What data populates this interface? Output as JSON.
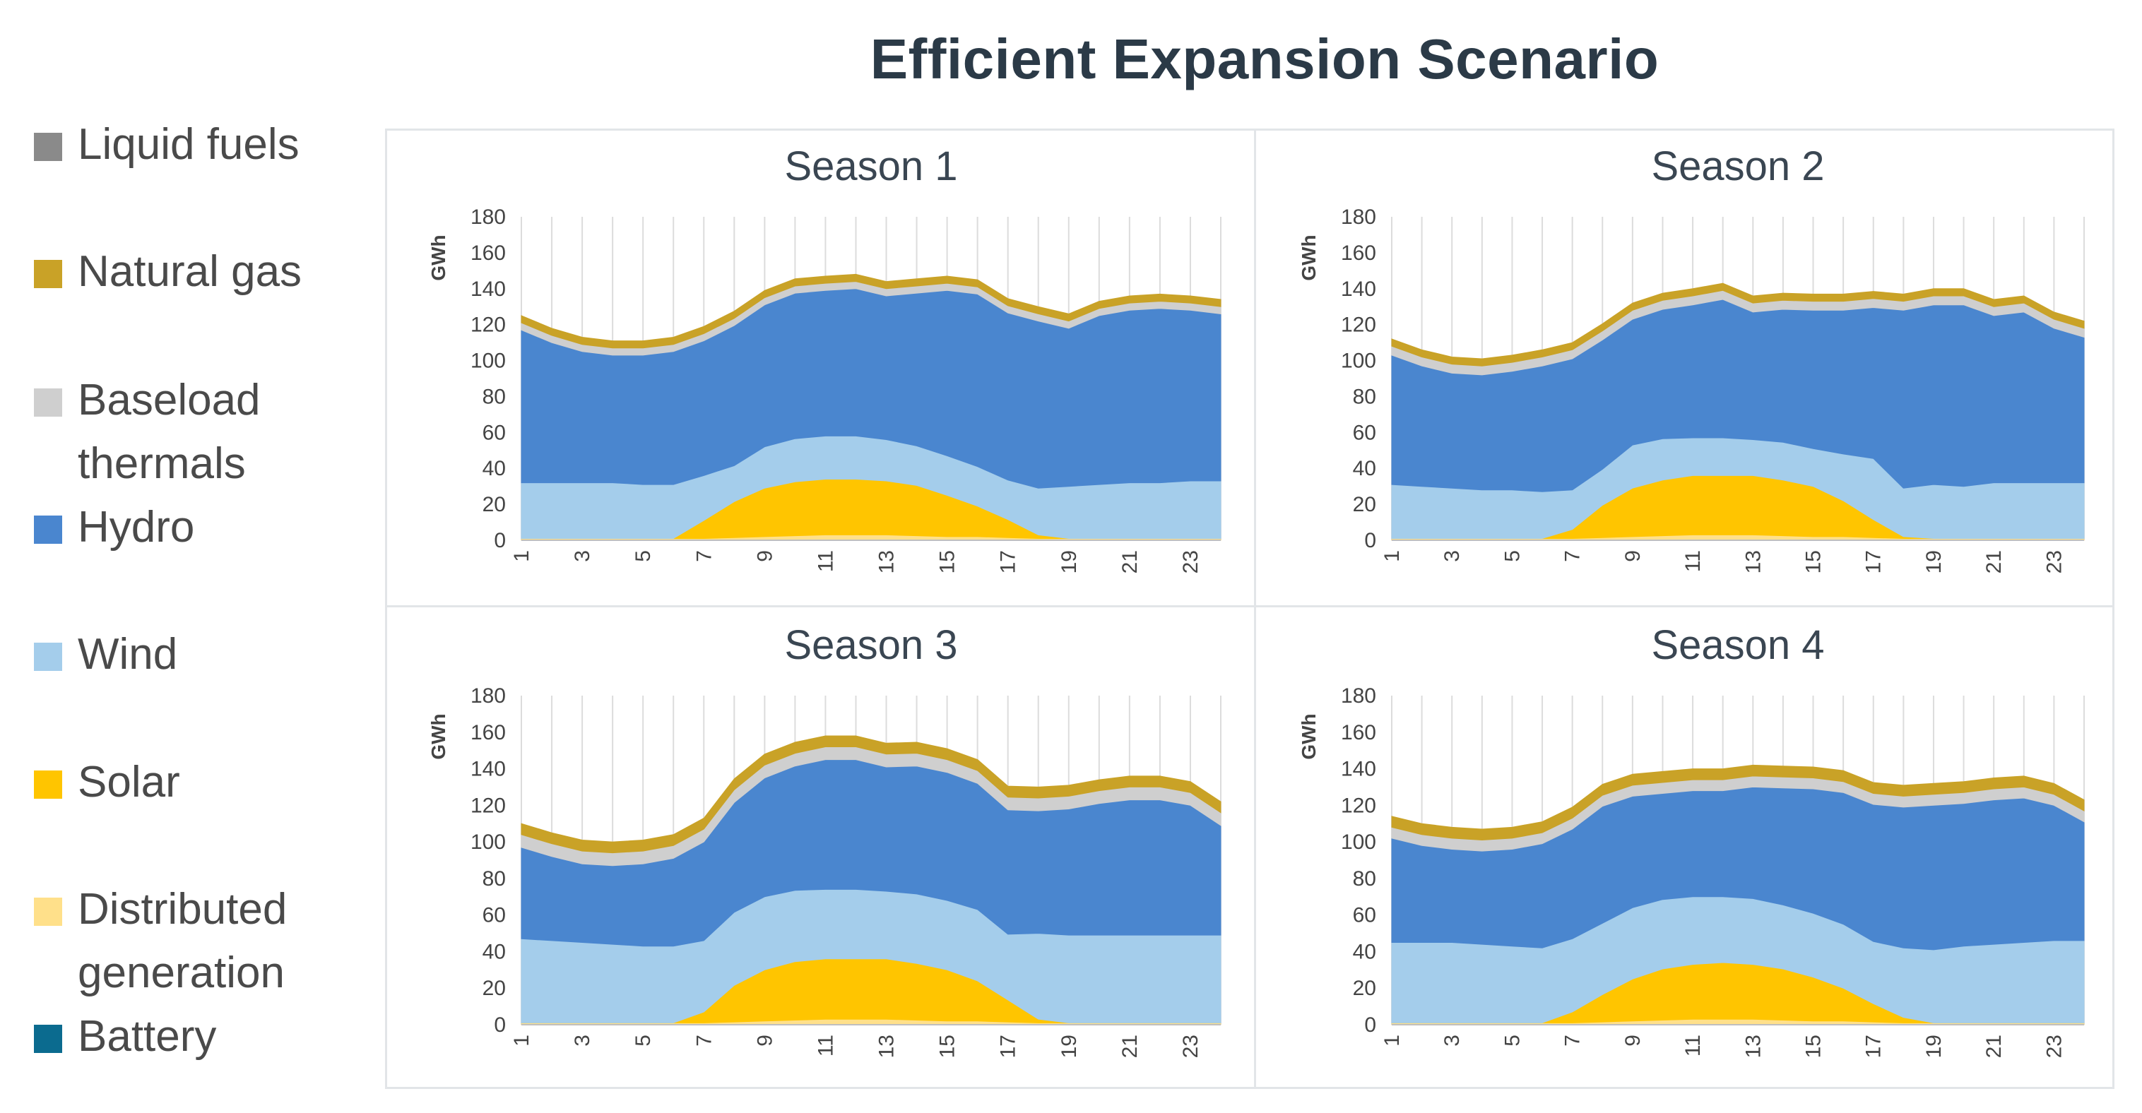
{
  "page": {
    "title": "Efficient Expansion Scenario"
  },
  "legend": {
    "items": [
      {
        "label": "Liquid fuels",
        "color": "#8a8a8a"
      },
      {
        "label": "Natural gas",
        "color": "#c9a227"
      },
      {
        "label": "Baseload\nthermals",
        "color": "#cfcfcf"
      },
      {
        "label": "Hydro",
        "color": "#4a86cf"
      },
      {
        "label": "Wind",
        "color": "#a4cdeb"
      },
      {
        "label": "Solar",
        "color": "#ffc500"
      },
      {
        "label": "Distributed\ngeneration",
        "color": "#ffe08a"
      },
      {
        "label": "Battery",
        "color": "#0b6b8f"
      }
    ]
  },
  "chart_data": [
    {
      "type": "area",
      "stacked": true,
      "title": "Season 1",
      "ylabel": "GWh",
      "ylim": [
        0,
        180
      ],
      "yticks": [
        0,
        20,
        40,
        60,
        80,
        100,
        120,
        140,
        160,
        180
      ],
      "xticks": [
        1,
        3,
        5,
        7,
        9,
        11,
        13,
        15,
        17,
        19,
        21,
        23
      ],
      "categories": [
        1,
        2,
        3,
        4,
        5,
        6,
        7,
        8,
        9,
        10,
        11,
        12,
        13,
        14,
        15,
        16,
        17,
        18,
        19,
        20,
        21,
        22,
        23,
        24
      ],
      "series": [
        {
          "name": "Battery",
          "values": [
            0,
            0,
            0,
            0,
            0,
            0,
            0,
            0,
            0,
            0,
            0,
            0,
            0,
            0,
            0,
            0,
            0,
            0,
            0,
            0,
            0,
            0,
            0,
            0
          ]
        },
        {
          "name": "Distributed generation",
          "values": [
            1,
            1,
            1,
            1,
            1,
            1,
            1,
            1.5,
            2,
            2.5,
            3,
            3,
            3,
            2.5,
            2,
            2,
            1.5,
            1,
            1,
            1,
            1,
            1,
            1,
            1
          ]
        },
        {
          "name": "Solar",
          "values": [
            0,
            0,
            0,
            0,
            0,
            0,
            10,
            20,
            27,
            30,
            31,
            31,
            30,
            28,
            23,
            17,
            10,
            2,
            0,
            0,
            0,
            0,
            0,
            0
          ]
        },
        {
          "name": "Wind",
          "values": [
            31,
            31,
            31,
            31,
            30,
            30,
            25,
            20,
            23,
            24,
            24,
            24,
            23,
            22,
            22,
            22,
            22,
            26,
            29,
            30,
            31,
            31,
            32,
            32
          ]
        },
        {
          "name": "Hydro",
          "values": [
            85,
            78,
            73,
            71,
            72,
            74,
            75,
            78,
            79,
            81,
            81,
            82,
            80,
            85,
            92,
            96,
            93,
            93,
            88,
            94,
            96,
            97,
            95,
            93
          ]
        },
        {
          "name": "Baseload thermals",
          "values": [
            4,
            4,
            4,
            4,
            4,
            4,
            4,
            4,
            4,
            4,
            4,
            4,
            4,
            4,
            4,
            4,
            4,
            4,
            4,
            4,
            4,
            4,
            4,
            4
          ]
        },
        {
          "name": "Natural gas",
          "values": [
            4,
            4,
            4,
            4,
            4,
            4,
            4,
            4,
            4,
            4,
            4,
            4,
            4,
            4,
            4,
            4,
            4,
            4,
            4,
            4,
            4,
            4,
            4,
            4
          ]
        },
        {
          "name": "Liquid fuels",
          "values": [
            0,
            0,
            0,
            0,
            0,
            0,
            0,
            0,
            0,
            0,
            0,
            0,
            0,
            0,
            0,
            0,
            0,
            0,
            0,
            0,
            0,
            0,
            0,
            0
          ]
        }
      ]
    },
    {
      "type": "area",
      "stacked": true,
      "title": "Season 2",
      "ylabel": "GWh",
      "ylim": [
        0,
        180
      ],
      "yticks": [
        0,
        20,
        40,
        60,
        80,
        100,
        120,
        140,
        160,
        180
      ],
      "xticks": [
        1,
        3,
        5,
        7,
        9,
        11,
        13,
        15,
        17,
        19,
        21,
        23
      ],
      "categories": [
        1,
        2,
        3,
        4,
        5,
        6,
        7,
        8,
        9,
        10,
        11,
        12,
        13,
        14,
        15,
        16,
        17,
        18,
        19,
        20,
        21,
        22,
        23,
        24
      ],
      "series": [
        {
          "name": "Battery",
          "values": [
            0,
            0,
            0,
            0,
            0,
            0,
            0,
            0,
            0,
            0,
            0,
            0,
            0,
            0,
            0,
            0,
            0,
            0,
            0,
            0,
            0,
            0,
            0,
            0
          ]
        },
        {
          "name": "Distributed generation",
          "values": [
            1,
            1,
            1,
            1,
            1,
            1,
            1,
            1.5,
            2,
            2.5,
            3,
            3,
            3,
            2.5,
            2,
            2,
            1.5,
            1,
            1,
            1,
            1,
            1,
            1,
            1
          ]
        },
        {
          "name": "Solar",
          "values": [
            0,
            0,
            0,
            0,
            0,
            0,
            5,
            18,
            27,
            31,
            33,
            33,
            33,
            31,
            28,
            20,
            10,
            1,
            0,
            0,
            0,
            0,
            0,
            0
          ]
        },
        {
          "name": "Wind",
          "values": [
            30,
            29,
            28,
            27,
            27,
            26,
            22,
            20,
            24,
            23,
            21,
            21,
            20,
            21,
            21,
            26,
            34,
            27,
            30,
            29,
            31,
            31,
            31,
            31
          ]
        },
        {
          "name": "Hydro",
          "values": [
            72,
            67,
            64,
            64,
            66,
            70,
            73,
            72,
            70,
            72,
            74,
            77,
            71,
            74,
            77,
            80,
            84,
            99,
            100,
            101,
            93,
            95,
            86,
            81
          ]
        },
        {
          "name": "Baseload thermals",
          "values": [
            5,
            5,
            5,
            5,
            5,
            5,
            5,
            5,
            5,
            5,
            5,
            5,
            5,
            5,
            5,
            5,
            5,
            5,
            5,
            5,
            5,
            5,
            5,
            5
          ]
        },
        {
          "name": "Natural gas",
          "values": [
            4,
            4,
            4,
            4,
            4,
            4,
            4,
            4,
            4,
            4,
            4,
            4,
            4,
            4,
            4,
            4,
            4,
            4,
            4,
            4,
            4,
            4,
            4,
            4
          ]
        },
        {
          "name": "Liquid fuels",
          "values": [
            0,
            0,
            0,
            0,
            0,
            0,
            0,
            0,
            0,
            0,
            0,
            0,
            0,
            0,
            0,
            0,
            0,
            0,
            0,
            0,
            0,
            0,
            0,
            0
          ]
        }
      ]
    },
    {
      "type": "area",
      "stacked": true,
      "title": "Season 3",
      "ylabel": "GWh",
      "ylim": [
        0,
        180
      ],
      "yticks": [
        0,
        20,
        40,
        60,
        80,
        100,
        120,
        140,
        160,
        180
      ],
      "xticks": [
        1,
        3,
        5,
        7,
        9,
        11,
        13,
        15,
        17,
        19,
        21,
        23
      ],
      "categories": [
        1,
        2,
        3,
        4,
        5,
        6,
        7,
        8,
        9,
        10,
        11,
        12,
        13,
        14,
        15,
        16,
        17,
        18,
        19,
        20,
        21,
        22,
        23,
        24
      ],
      "series": [
        {
          "name": "Battery",
          "values": [
            0,
            0,
            0,
            0,
            0,
            0,
            0,
            0,
            0,
            0,
            0,
            0,
            0,
            0,
            0,
            0,
            0,
            0,
            0,
            0,
            0,
            0,
            0,
            0
          ]
        },
        {
          "name": "Distributed generation",
          "values": [
            1,
            1,
            1,
            1,
            1,
            1,
            1,
            1.5,
            2,
            2.5,
            3,
            3,
            3,
            2.5,
            2,
            2,
            1.5,
            1,
            1,
            1,
            1,
            1,
            1,
            1
          ]
        },
        {
          "name": "Solar",
          "values": [
            0,
            0,
            0,
            0,
            0,
            0,
            6,
            20,
            28,
            32,
            33,
            33,
            33,
            31,
            28,
            22,
            12,
            2,
            0,
            0,
            0,
            0,
            0,
            0
          ]
        },
        {
          "name": "Wind",
          "values": [
            46,
            45,
            44,
            43,
            42,
            42,
            39,
            40,
            40,
            39,
            38,
            38,
            37,
            38,
            38,
            39,
            36,
            47,
            48,
            48,
            48,
            48,
            48,
            48
          ]
        },
        {
          "name": "Hydro",
          "values": [
            50,
            46,
            43,
            43,
            45,
            48,
            54,
            60,
            65,
            68,
            71,
            71,
            68,
            70,
            70,
            69,
            68,
            67,
            69,
            72,
            74,
            74,
            71,
            60
          ]
        },
        {
          "name": "Baseload thermals",
          "values": [
            7,
            7,
            7,
            7,
            7,
            7,
            7,
            7,
            7,
            7,
            7,
            7,
            7,
            7,
            7,
            7,
            7,
            7,
            7,
            7,
            7,
            7,
            7,
            7
          ]
        },
        {
          "name": "Natural gas",
          "values": [
            6,
            6,
            6,
            6,
            6,
            6,
            6,
            6,
            6,
            6,
            6,
            6,
            6,
            6,
            6,
            6,
            6,
            6,
            6,
            6,
            6,
            6,
            6,
            6
          ]
        },
        {
          "name": "Liquid fuels",
          "values": [
            0,
            0,
            0,
            0,
            0,
            0,
            0,
            0,
            0,
            0,
            0,
            0,
            0,
            0,
            0,
            0,
            0,
            0,
            0,
            0,
            0,
            0,
            0,
            0
          ]
        }
      ]
    },
    {
      "type": "area",
      "stacked": true,
      "title": "Season 4",
      "ylabel": "GWh",
      "ylim": [
        0,
        180
      ],
      "yticks": [
        0,
        20,
        40,
        60,
        80,
        100,
        120,
        140,
        160,
        180
      ],
      "xticks": [
        1,
        3,
        5,
        7,
        9,
        11,
        13,
        15,
        17,
        19,
        21,
        23
      ],
      "categories": [
        1,
        2,
        3,
        4,
        5,
        6,
        7,
        8,
        9,
        10,
        11,
        12,
        13,
        14,
        15,
        16,
        17,
        18,
        19,
        20,
        21,
        22,
        23,
        24
      ],
      "series": [
        {
          "name": "Battery",
          "values": [
            0,
            0,
            0,
            0,
            0,
            0,
            0,
            0,
            0,
            0,
            0,
            0,
            0,
            0,
            0,
            0,
            0,
            0,
            0,
            0,
            0,
            0,
            0,
            0
          ]
        },
        {
          "name": "Distributed generation",
          "values": [
            1,
            1,
            1,
            1,
            1,
            1,
            1,
            1.5,
            2,
            2.5,
            3,
            3,
            3,
            2.5,
            2,
            2,
            1.5,
            1,
            1,
            1,
            1,
            1,
            1,
            1
          ]
        },
        {
          "name": "Solar",
          "values": [
            0,
            0,
            0,
            0,
            0,
            0,
            6,
            15,
            23,
            28,
            30,
            31,
            30,
            28,
            24,
            18,
            10,
            3,
            0,
            0,
            0,
            0,
            0,
            0
          ]
        },
        {
          "name": "Wind",
          "values": [
            44,
            44,
            44,
            43,
            42,
            41,
            40,
            39,
            39,
            38,
            37,
            36,
            36,
            35,
            35,
            35,
            34,
            38,
            40,
            42,
            43,
            44,
            45,
            45
          ]
        },
        {
          "name": "Hydro",
          "values": [
            57,
            53,
            51,
            51,
            53,
            57,
            60,
            64,
            61,
            58,
            58,
            58,
            61,
            64,
            68,
            72,
            75,
            77,
            79,
            78,
            79,
            79,
            74,
            65
          ]
        },
        {
          "name": "Baseload thermals",
          "values": [
            6,
            6,
            6,
            6,
            6,
            6,
            6,
            6,
            6,
            6,
            6,
            6,
            6,
            6,
            6,
            6,
            6,
            6,
            6,
            6,
            6,
            6,
            6,
            6
          ]
        },
        {
          "name": "Natural gas",
          "values": [
            6,
            6,
            6,
            6,
            6,
            6,
            6,
            6,
            6,
            6,
            6,
            6,
            6,
            6,
            6,
            6,
            6,
            6,
            6,
            6,
            6,
            6,
            6,
            6
          ]
        },
        {
          "name": "Liquid fuels",
          "values": [
            0,
            0,
            0,
            0,
            0,
            0,
            0,
            0,
            0,
            0,
            0,
            0,
            0,
            0,
            0,
            0,
            0,
            0,
            0,
            0,
            0,
            0,
            0,
            0
          ]
        }
      ]
    }
  ]
}
